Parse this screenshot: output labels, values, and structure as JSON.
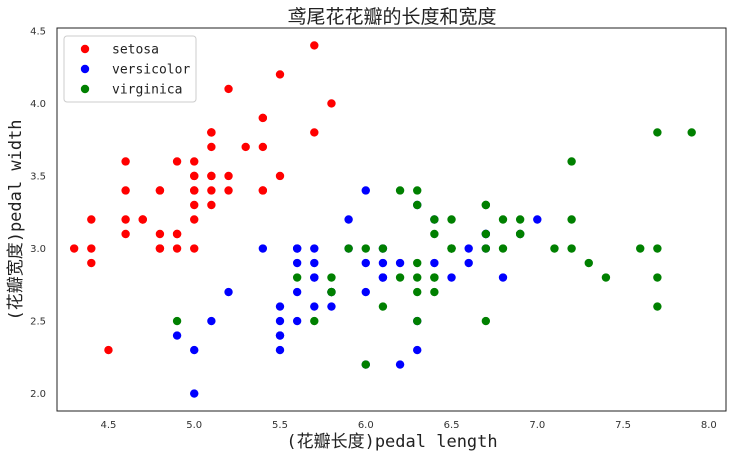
{
  "chart_data": {
    "type": "scatter",
    "title": "鸢尾花花瓣的长度和宽度",
    "xlabel": "(花瓣长度)pedal length",
    "ylabel": "(花瓣宽度)pedal width",
    "xlim": [
      4.2,
      8.1
    ],
    "ylim": [
      1.88,
      4.52
    ],
    "xticks": [
      "4.5",
      "5.0",
      "5.5",
      "6.0",
      "6.5",
      "7.0",
      "7.5",
      "8.0"
    ],
    "yticks": [
      "2.0",
      "2.5",
      "3.0",
      "3.5",
      "4.0",
      "4.5"
    ],
    "grid": false,
    "legend_position": "top-left",
    "series": [
      {
        "name": "setosa",
        "color": "#ff0000",
        "points": [
          [
            5.1,
            3.5
          ],
          [
            4.9,
            3.0
          ],
          [
            4.7,
            3.2
          ],
          [
            4.6,
            3.1
          ],
          [
            5.0,
            3.6
          ],
          [
            5.4,
            3.9
          ],
          [
            4.6,
            3.4
          ],
          [
            5.0,
            3.4
          ],
          [
            4.4,
            2.9
          ],
          [
            4.9,
            3.1
          ],
          [
            5.4,
            3.7
          ],
          [
            4.8,
            3.4
          ],
          [
            4.8,
            3.0
          ],
          [
            4.3,
            3.0
          ],
          [
            5.8,
            4.0
          ],
          [
            5.7,
            4.4
          ],
          [
            5.4,
            3.9
          ],
          [
            5.1,
            3.5
          ],
          [
            5.7,
            3.8
          ],
          [
            5.1,
            3.8
          ],
          [
            5.4,
            3.4
          ],
          [
            5.1,
            3.7
          ],
          [
            4.6,
            3.6
          ],
          [
            5.1,
            3.3
          ],
          [
            4.8,
            3.4
          ],
          [
            5.0,
            3.0
          ],
          [
            5.0,
            3.4
          ],
          [
            5.2,
            3.5
          ],
          [
            5.2,
            3.4
          ],
          [
            4.7,
            3.2
          ],
          [
            4.8,
            3.1
          ],
          [
            5.4,
            3.4
          ],
          [
            5.2,
            4.1
          ],
          [
            5.5,
            4.2
          ],
          [
            4.9,
            3.1
          ],
          [
            5.0,
            3.2
          ],
          [
            5.5,
            3.5
          ],
          [
            4.9,
            3.6
          ],
          [
            4.4,
            3.0
          ],
          [
            5.1,
            3.4
          ],
          [
            5.0,
            3.5
          ],
          [
            4.5,
            2.3
          ],
          [
            4.4,
            3.2
          ],
          [
            5.0,
            3.5
          ],
          [
            5.1,
            3.8
          ],
          [
            4.8,
            3.0
          ],
          [
            5.1,
            3.8
          ],
          [
            4.6,
            3.2
          ],
          [
            5.3,
            3.7
          ],
          [
            5.0,
            3.3
          ]
        ]
      },
      {
        "name": "versicolor",
        "color": "#0000ff",
        "points": [
          [
            7.0,
            3.2
          ],
          [
            6.4,
            3.2
          ],
          [
            6.9,
            3.1
          ],
          [
            5.5,
            2.3
          ],
          [
            6.5,
            2.8
          ],
          [
            5.7,
            2.8
          ],
          [
            6.3,
            3.3
          ],
          [
            4.9,
            2.4
          ],
          [
            6.6,
            2.9
          ],
          [
            5.2,
            2.7
          ],
          [
            5.0,
            2.0
          ],
          [
            5.9,
            3.0
          ],
          [
            6.0,
            2.2
          ],
          [
            6.1,
            2.9
          ],
          [
            5.6,
            2.9
          ],
          [
            6.7,
            3.1
          ],
          [
            5.6,
            3.0
          ],
          [
            5.8,
            2.7
          ],
          [
            6.2,
            2.2
          ],
          [
            5.6,
            2.5
          ],
          [
            5.9,
            3.2
          ],
          [
            6.1,
            2.8
          ],
          [
            6.3,
            2.5
          ],
          [
            6.1,
            2.8
          ],
          [
            6.4,
            2.9
          ],
          [
            6.6,
            3.0
          ],
          [
            6.8,
            2.8
          ],
          [
            6.7,
            3.0
          ],
          [
            6.0,
            2.9
          ],
          [
            5.7,
            2.6
          ],
          [
            5.5,
            2.4
          ],
          [
            5.5,
            2.4
          ],
          [
            5.8,
            2.7
          ],
          [
            6.0,
            2.7
          ],
          [
            5.4,
            3.0
          ],
          [
            6.0,
            3.4
          ],
          [
            6.7,
            3.1
          ],
          [
            6.3,
            2.3
          ],
          [
            5.6,
            3.0
          ],
          [
            5.5,
            2.5
          ],
          [
            5.5,
            2.6
          ],
          [
            6.1,
            3.0
          ],
          [
            5.8,
            2.6
          ],
          [
            5.0,
            2.3
          ],
          [
            5.6,
            2.7
          ],
          [
            5.7,
            3.0
          ],
          [
            5.7,
            2.9
          ],
          [
            6.2,
            2.9
          ],
          [
            5.1,
            2.5
          ],
          [
            5.7,
            2.8
          ]
        ]
      },
      {
        "name": "virginica",
        "color": "#008000",
        "points": [
          [
            6.3,
            3.3
          ],
          [
            5.8,
            2.7
          ],
          [
            7.1,
            3.0
          ],
          [
            6.3,
            2.9
          ],
          [
            6.5,
            3.0
          ],
          [
            7.6,
            3.0
          ],
          [
            4.9,
            2.5
          ],
          [
            7.3,
            2.9
          ],
          [
            6.7,
            2.5
          ],
          [
            7.2,
            3.6
          ],
          [
            6.5,
            3.2
          ],
          [
            6.4,
            2.7
          ],
          [
            6.8,
            3.0
          ],
          [
            5.7,
            2.5
          ],
          [
            5.8,
            2.8
          ],
          [
            6.4,
            3.2
          ],
          [
            6.5,
            3.0
          ],
          [
            7.7,
            3.8
          ],
          [
            7.7,
            2.6
          ],
          [
            6.0,
            2.2
          ],
          [
            6.9,
            3.2
          ],
          [
            5.6,
            2.8
          ],
          [
            7.7,
            2.8
          ],
          [
            6.3,
            2.7
          ],
          [
            6.7,
            3.3
          ],
          [
            7.2,
            3.2
          ],
          [
            6.2,
            2.8
          ],
          [
            6.1,
            3.0
          ],
          [
            6.4,
            2.8
          ],
          [
            7.2,
            3.0
          ],
          [
            7.4,
            2.8
          ],
          [
            7.9,
            3.8
          ],
          [
            6.4,
            2.8
          ],
          [
            6.3,
            2.8
          ],
          [
            6.1,
            2.6
          ],
          [
            7.7,
            3.0
          ],
          [
            6.3,
            3.4
          ],
          [
            6.4,
            3.1
          ],
          [
            6.0,
            3.0
          ],
          [
            6.9,
            3.1
          ],
          [
            6.7,
            3.1
          ],
          [
            6.9,
            3.1
          ],
          [
            5.8,
            2.7
          ],
          [
            6.8,
            3.2
          ],
          [
            6.7,
            3.3
          ],
          [
            6.7,
            3.0
          ],
          [
            6.3,
            2.5
          ],
          [
            6.5,
            3.0
          ],
          [
            6.2,
            3.4
          ],
          [
            5.9,
            3.0
          ]
        ]
      }
    ]
  }
}
